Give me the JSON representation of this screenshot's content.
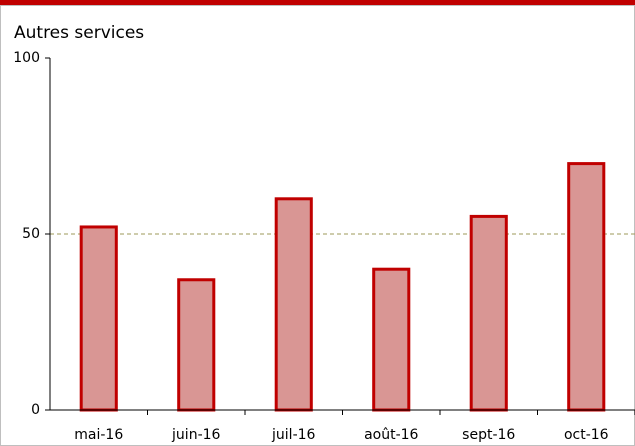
{
  "chart_data": {
    "type": "bar",
    "title": "Autres services",
    "categories": [
      "mai-16",
      "juin-16",
      "juil-16",
      "août-16",
      "sept-16",
      "oct-16"
    ],
    "values": [
      52,
      37,
      60,
      40,
      55,
      70
    ],
    "color": "#d99694",
    "edge_color": "#c00000",
    "ylim": [
      0,
      100
    ],
    "yticks": [
      0,
      50,
      100
    ],
    "reference_line": {
      "value": 50,
      "color": "#9c9a5a",
      "style": "dashed"
    }
  }
}
